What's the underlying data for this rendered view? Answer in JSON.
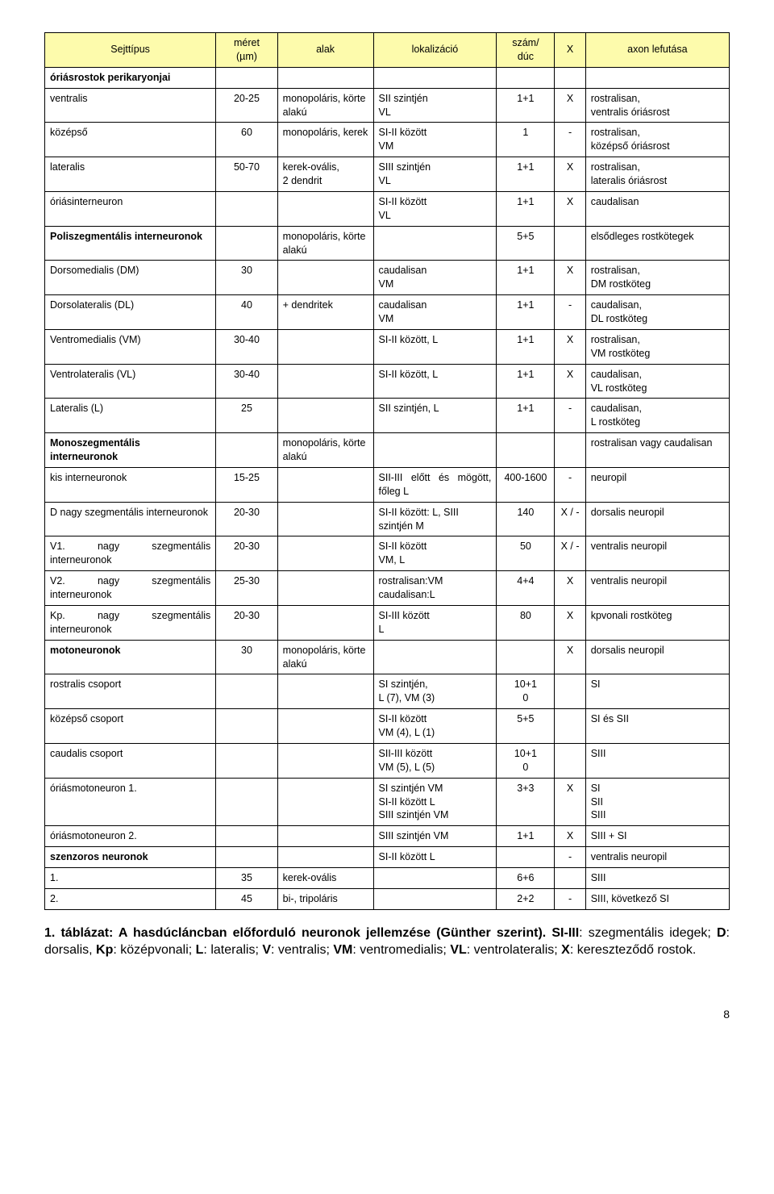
{
  "header": {
    "c0": "Sejttípus",
    "c1": "méret\n(µm)",
    "c2": "alak",
    "c3": "lokalizáció",
    "c4": "szám/\ndúc",
    "c5": "X",
    "c6": "axon lefutása"
  },
  "rows": [
    {
      "c0": "óriásrostok perikaryonjai",
      "c1": "",
      "c2": "",
      "c3": "",
      "c4": "",
      "c5": "",
      "c6": "",
      "bold0": true
    },
    {
      "c0": "ventralis",
      "c1": "20-25",
      "c2": "monopoláris, körte alakú",
      "c3": "SII szintjén\nVL",
      "c4": "1+1",
      "c5": "X",
      "c6": "rostralisan,\nventralis óriásrost"
    },
    {
      "c0": "középső",
      "c1": "60",
      "c2": "monopoláris, kerek",
      "c3": "SI-II között\nVM",
      "c4": "1",
      "c5": "-",
      "c6": "rostralisan,\nközépső óriásrost"
    },
    {
      "c0": "lateralis",
      "c1": "50-70",
      "c2": "kerek-ovális,\n2 dendrit",
      "c3": "SIII szintjén\nVL",
      "c4": "1+1",
      "c5": "X",
      "c6": "rostralisan,\nlateralis óriásrost"
    },
    {
      "c0": "óriásinterneuron",
      "c1": "",
      "c2": "",
      "c3": "SI-II között\nVL",
      "c4": "1+1",
      "c5": "X",
      "c6": "caudalisan"
    },
    {
      "c0": "Poliszegmentális interneuronok",
      "c1": "",
      "c2": "monopoláris, körte alakú",
      "c3": "",
      "c4": "5+5",
      "c5": "",
      "c6": "elsődleges rostkötegek",
      "bold0": true
    },
    {
      "c0": "Dorsomedialis (DM)",
      "c1": "30",
      "c2": "",
      "c3": "caudalisan\nVM",
      "c4": "1+1",
      "c5": "X",
      "c6": "rostralisan,\nDM rostköteg"
    },
    {
      "c0": "Dorsolateralis (DL)",
      "c1": "40",
      "c2": "+ dendritek",
      "c3": "caudalisan\nVM",
      "c4": "1+1",
      "c5": "-",
      "c6": "caudalisan,\nDL rostköteg"
    },
    {
      "c0": "Ventromedialis (VM)",
      "c1": "30-40",
      "c2": "",
      "c3": "SI-II között, L",
      "c4": "1+1",
      "c5": "X",
      "c6": "rostralisan,\nVM rostköteg"
    },
    {
      "c0": "Ventrolateralis (VL)",
      "c1": "30-40",
      "c2": "",
      "c3": "SI-II között, L",
      "c4": "1+1",
      "c5": "X",
      "c6": "caudalisan,\nVL rostköteg"
    },
    {
      "c0": "Lateralis (L)",
      "c1": "25",
      "c2": "",
      "c3": "SII szintjén, L",
      "c4": "1+1",
      "c5": "-",
      "c6": "caudalisan,\nL rostköteg"
    },
    {
      "c0": "Monoszegmentális interneuronok",
      "c1": "",
      "c2": "monopoláris, körte alakú",
      "c3": "",
      "c4": "",
      "c5": "",
      "c6": "rostralisan vagy caudalisan",
      "bold0": true,
      "justify6": true
    },
    {
      "c0": "kis interneuronok",
      "c1": "15-25",
      "c2": "",
      "c3": "SII-III előtt és mögött, főleg L",
      "c4": "400-1600",
      "c5": "-",
      "c6": "neuropil",
      "justify3": true
    },
    {
      "c0": "D nagy szegmentális interneuronok",
      "c1": "20-30",
      "c2": "",
      "c3": "SI-II között: L, SIII szintjén M",
      "c4": "140",
      "c5": "X / -",
      "c6": "dorsalis neuropil",
      "justify0": true
    },
    {
      "c0": "V1. nagy szegmentális interneuronok",
      "c1": "20-30",
      "c2": "",
      "c3": "SI-II között\nVM, L",
      "c4": "50",
      "c5": "X / -",
      "c6": "ventralis neuropil",
      "justify0": true
    },
    {
      "c0": "V2. nagy szegmentális interneuronok",
      "c1": "25-30",
      "c2": "",
      "c3": "rostralisan:VM\ncaudalisan:L",
      "c4": "4+4",
      "c5": "X",
      "c6": "ventralis neuropil",
      "justify0": true
    },
    {
      "c0": "Kp. nagy szegmentális interneuronok",
      "c1": "20-30",
      "c2": "",
      "c3": "SI-III között\nL",
      "c4": "80",
      "c5": "X",
      "c6": "kpvonali rostköteg",
      "justify0": true
    },
    {
      "c0": "motoneuronok",
      "c1": "30",
      "c2": "monopoláris, körte alakú",
      "c3": "",
      "c4": "",
      "c5": "X",
      "c6": "dorsalis neuropil",
      "bold0": true
    },
    {
      "c0": "rostralis csoport",
      "c1": "",
      "c2": "",
      "c3": "SI szintjén,\nL (7), VM (3)",
      "c4": "10+1\n0",
      "c5": "",
      "c6": "SI"
    },
    {
      "c0": "középső csoport",
      "c1": "",
      "c2": "",
      "c3": "SI-II között\nVM (4), L (1)",
      "c4": "5+5",
      "c5": "",
      "c6": "SI és SII"
    },
    {
      "c0": "caudalis csoport",
      "c1": "",
      "c2": "",
      "c3": "SII-III között\nVM (5), L (5)",
      "c4": "10+1\n0",
      "c5": "",
      "c6": "SIII"
    },
    {
      "c0": "óriásmotoneuron 1.",
      "c1": "",
      "c2": "",
      "c3": "SI szintjén VM\nSI-II között L\nSIII szintjén VM",
      "c4": "3+3",
      "c5": "X",
      "c6": "SI\nSII\nSIII"
    },
    {
      "c0": "óriásmotoneuron 2.",
      "c1": "",
      "c2": "",
      "c3": "SIII szintjén VM",
      "c4": "1+1",
      "c5": "X",
      "c6": "SIII + SI"
    },
    {
      "c0": "szenzoros neuronok",
      "c1": "",
      "c2": "",
      "c3": "SI-II között L",
      "c4": "",
      "c5": "-",
      "c6": "ventralis neuropil",
      "bold0": true
    },
    {
      "c0": "1.",
      "c1": "35",
      "c2": "kerek-ovális",
      "c3": "",
      "c4": "6+6",
      "c5": "",
      "c6": "SIII"
    },
    {
      "c0": "2.",
      "c1": "45",
      "c2": "bi-, tripoláris",
      "c3": "",
      "c4": "2+2",
      "c5": "-",
      "c6": "SIII, következő SI"
    }
  ],
  "caption_html": "<b>1. táblázat: A hasdúcláncban előforduló neuronok jellemzése (Günther szerint).</b> <b>SI-III</b>: szegmentális idegek; <b>D</b>: dorsalis, <b>Kp</b>: középvonali; <b>L</b>: lateralis; <b>V</b>: ventralis; <b>VM</b>: ventromedialis; <b>VL</b>: ventrolateralis; <b>X</b>: kereszteződő rostok.",
  "pagenum": "8"
}
